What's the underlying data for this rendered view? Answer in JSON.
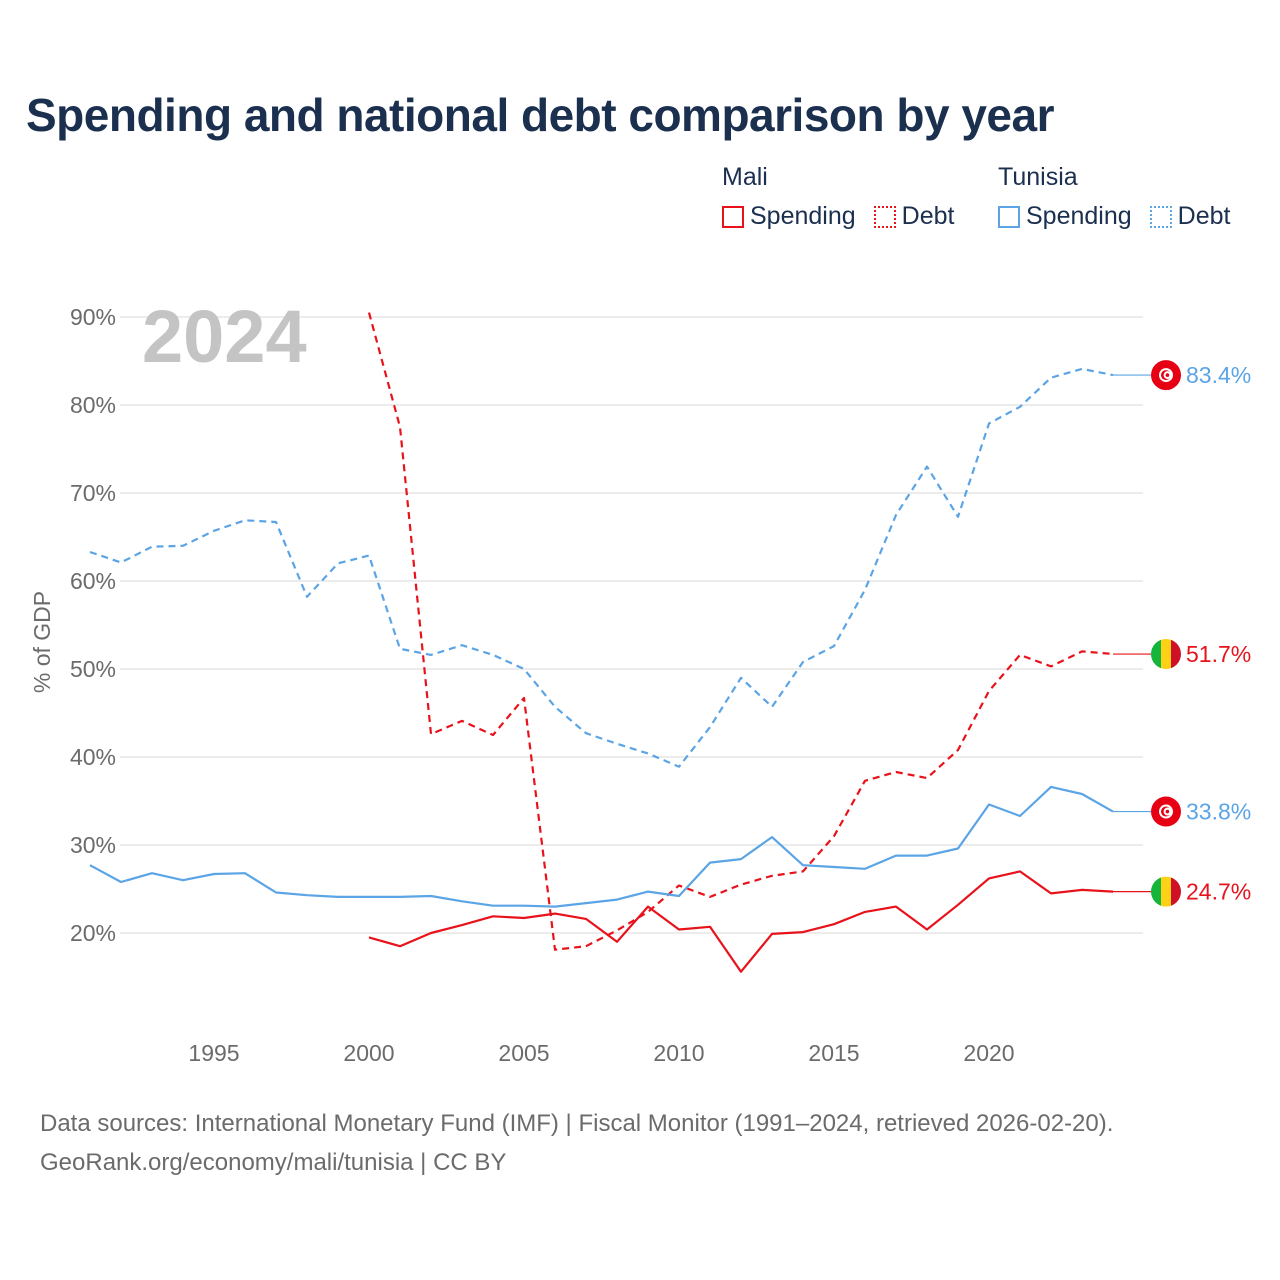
{
  "title": "Spending and national debt comparison by year",
  "legend": {
    "groups": [
      {
        "country": "Mali",
        "color": "#e8121b",
        "items": [
          {
            "label": "Spending",
            "style": "solid"
          },
          {
            "label": "Debt",
            "style": "dotted"
          }
        ]
      },
      {
        "country": "Tunisia",
        "color": "#5ba4e5",
        "items": [
          {
            "label": "Spending",
            "style": "solid"
          },
          {
            "label": "Debt",
            "style": "dotted"
          }
        ]
      }
    ]
  },
  "footer": {
    "line1": "Data sources: International Monetary Fund (IMF) | Fiscal Monitor (1991–2024, retrieved 2026-02-20).",
    "line2": "GeoRank.org/economy/mali/tunisia | CC BY"
  },
  "chart_data": {
    "type": "line",
    "title": "Spending and national debt comparison by year",
    "year_label": "2024",
    "xlabel": "",
    "ylabel": "% of GDP",
    "xlim": [
      1991,
      2024
    ],
    "ylim": [
      10,
      90
    ],
    "x_ticks": [
      1995,
      2000,
      2005,
      2010,
      2015,
      2020
    ],
    "y_ticks": [
      20,
      30,
      40,
      50,
      60,
      70,
      80,
      90
    ],
    "y_tick_labels": [
      "20%",
      "30%",
      "40%",
      "50%",
      "60%",
      "70%",
      "80%",
      "90%"
    ],
    "grid": true,
    "series": [
      {
        "name": "Mali Spending",
        "country": "Mali",
        "measure": "Spending",
        "color": "#e8121b",
        "dashed": false,
        "flag": "mali-flag",
        "end_label": "24.7%",
        "x": [
          2000,
          2001,
          2002,
          2003,
          2004,
          2005,
          2006,
          2007,
          2008,
          2009,
          2010,
          2011,
          2012,
          2013,
          2014,
          2015,
          2016,
          2017,
          2018,
          2019,
          2020,
          2021,
          2022,
          2023,
          2024
        ],
        "values": [
          19.5,
          18.5,
          20.0,
          20.9,
          21.9,
          21.7,
          22.2,
          21.6,
          19.0,
          23.0,
          20.4,
          20.7,
          15.6,
          19.9,
          20.1,
          21.0,
          22.4,
          23.0,
          20.4,
          23.2,
          26.2,
          27.0,
          24.5,
          24.9,
          24.7
        ]
      },
      {
        "name": "Mali Debt",
        "country": "Mali",
        "measure": "Debt",
        "color": "#e8121b",
        "dashed": true,
        "flag": "mali-flag",
        "end_label": "51.7%",
        "x": [
          2000,
          2001,
          2002,
          2003,
          2004,
          2005,
          2006,
          2007,
          2008,
          2009,
          2010,
          2011,
          2012,
          2013,
          2014,
          2015,
          2016,
          2017,
          2018,
          2019,
          2020,
          2021,
          2022,
          2023,
          2024
        ],
        "values": [
          90.5,
          77.5,
          42.6,
          44.1,
          42.5,
          46.7,
          18.1,
          18.5,
          20.3,
          22.4,
          25.4,
          24.1,
          25.5,
          26.5,
          27.0,
          31.0,
          37.3,
          38.3,
          37.6,
          40.8,
          47.5,
          51.6,
          50.3,
          52.0,
          51.7
        ]
      },
      {
        "name": "Tunisia Spending",
        "country": "Tunisia",
        "measure": "Spending",
        "color": "#5ba4e5",
        "dashed": false,
        "flag": "tunisia-flag",
        "end_label": "33.8%",
        "x": [
          1991,
          1992,
          1993,
          1994,
          1995,
          1996,
          1997,
          1998,
          1999,
          2000,
          2001,
          2002,
          2003,
          2004,
          2005,
          2006,
          2007,
          2008,
          2009,
          2010,
          2011,
          2012,
          2013,
          2014,
          2015,
          2016,
          2017,
          2018,
          2019,
          2020,
          2021,
          2022,
          2023,
          2024
        ],
        "values": [
          27.7,
          25.8,
          26.8,
          26.0,
          26.7,
          26.8,
          24.6,
          24.3,
          24.1,
          24.1,
          24.1,
          24.2,
          23.6,
          23.1,
          23.1,
          23.0,
          23.4,
          23.8,
          24.7,
          24.2,
          28.0,
          28.4,
          30.9,
          27.7,
          27.5,
          27.3,
          28.8,
          28.8,
          29.6,
          34.6,
          33.3,
          36.6,
          35.8,
          33.8
        ]
      },
      {
        "name": "Tunisia Debt",
        "country": "Tunisia",
        "measure": "Debt",
        "color": "#5ba4e5",
        "dashed": true,
        "flag": "tunisia-flag",
        "end_label": "83.4%",
        "x": [
          1991,
          1992,
          1993,
          1994,
          1995,
          1996,
          1997,
          1998,
          1999,
          2000,
          2001,
          2002,
          2003,
          2004,
          2005,
          2006,
          2007,
          2008,
          2009,
          2010,
          2011,
          2012,
          2013,
          2014,
          2015,
          2016,
          2017,
          2018,
          2019,
          2020,
          2021,
          2022,
          2023,
          2024
        ],
        "values": [
          63.3,
          62.1,
          63.9,
          64.0,
          65.7,
          66.9,
          66.7,
          58.2,
          62.0,
          62.9,
          52.3,
          51.6,
          52.7,
          51.6,
          50.0,
          45.7,
          42.7,
          41.5,
          40.4,
          38.9,
          43.4,
          49.0,
          45.7,
          50.8,
          52.6,
          59.0,
          67.5,
          73.0,
          67.3,
          77.9,
          79.8,
          83.1,
          84.1,
          83.4
        ]
      }
    ]
  }
}
